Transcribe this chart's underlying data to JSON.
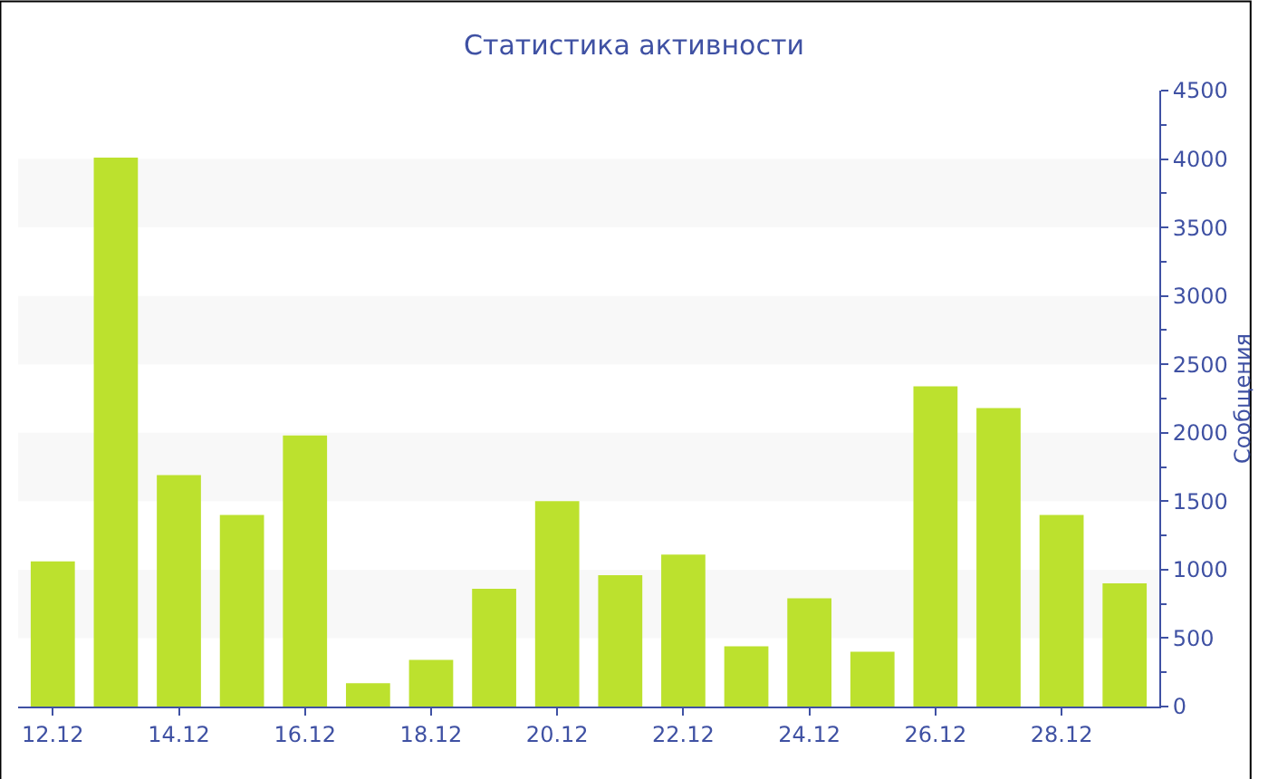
{
  "chart_data": {
    "type": "bar",
    "title": "Статистика активности",
    "ylabel": "Сообщения",
    "categories": [
      "12.12",
      null,
      "14.12",
      null,
      "16.12",
      null,
      "18.12",
      null,
      "20.12",
      null,
      "22.12",
      null,
      "24.12",
      null,
      "26.12",
      null,
      "28.12",
      null
    ],
    "values": [
      1060,
      4010,
      1690,
      1400,
      1980,
      170,
      340,
      860,
      1500,
      960,
      1110,
      440,
      790,
      400,
      2340,
      2180,
      1400,
      900
    ],
    "color": "#bce12e",
    "ylim": [
      0,
      4500
    ],
    "yticks": [
      0,
      500,
      1000,
      1500,
      2000,
      2500,
      3000,
      3500,
      4000,
      4500
    ],
    "bands": [
      {
        "axis": "y",
        "from": 500,
        "to": 1000,
        "color": "#f8f8f8"
      },
      {
        "axis": "y",
        "from": 1500,
        "to": 2000,
        "color": "#f8f8f8"
      },
      {
        "axis": "y",
        "from": 2500,
        "to": 3000,
        "color": "#f8f8f8"
      },
      {
        "axis": "y",
        "from": 3500,
        "to": 4000,
        "color": "#f8f8f8"
      }
    ],
    "grid": false,
    "legend": false
  }
}
